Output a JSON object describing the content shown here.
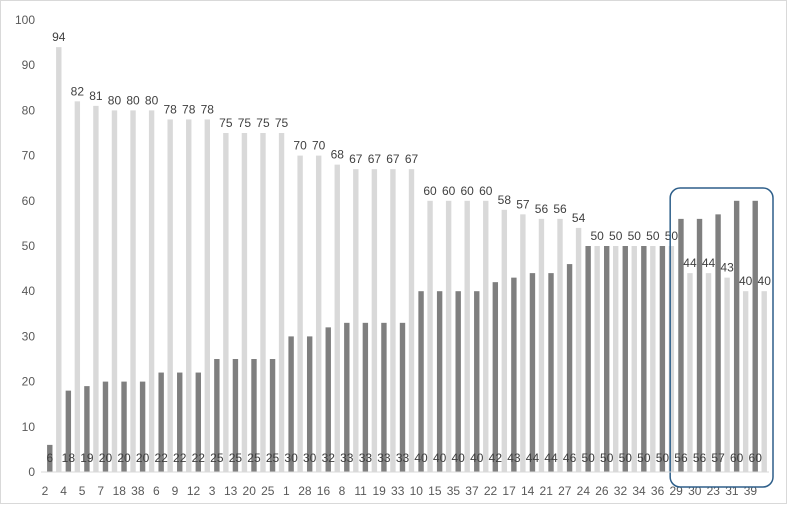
{
  "chart_data": {
    "type": "bar",
    "title": "",
    "xlabel": "",
    "ylabel": "",
    "ylim": [
      0,
      100
    ],
    "yticks": [
      0,
      10,
      20,
      30,
      40,
      50,
      60,
      70,
      80,
      90,
      100
    ],
    "grid": false,
    "legend": "none",
    "categories": [
      "2",
      "4",
      "5",
      "7",
      "18",
      "38",
      "6",
      "9",
      "12",
      "3",
      "13",
      "20",
      "25",
      "1",
      "28",
      "16",
      "8",
      "11",
      "19",
      "33",
      "10",
      "15",
      "35",
      "37",
      "22",
      "17",
      "14",
      "21",
      "27",
      "24",
      "26",
      "32",
      "34",
      "36",
      "29",
      "30",
      "23",
      "31",
      "39"
    ],
    "x_tick_labels": [
      "2",
      "4",
      "5",
      "7",
      "18",
      "38",
      "6",
      "9",
      "12",
      "3",
      "13",
      "20",
      "25",
      "1",
      "28",
      "16",
      "8",
      "11",
      "19",
      "33",
      "10",
      "15",
      "35",
      "37",
      "22",
      "17",
      "14",
      "21",
      "27",
      "24",
      "26",
      "32",
      "34",
      "36",
      "29",
      "30",
      "23",
      "31",
      "39"
    ],
    "series": [
      {
        "values": [
          6,
          18,
          19,
          20,
          20,
          20,
          22,
          22,
          22,
          25,
          25,
          25,
          25,
          30,
          30,
          32,
          33,
          33,
          33,
          33,
          40,
          40,
          40,
          40,
          42,
          43,
          44,
          44,
          46,
          50,
          50,
          50,
          50,
          50,
          56,
          56,
          57,
          60,
          60
        ]
      },
      {
        "values": [
          94,
          82,
          81,
          80,
          80,
          80,
          78,
          78,
          78,
          75,
          75,
          75,
          75,
          70,
          70,
          68,
          67,
          67,
          67,
          67,
          60,
          60,
          60,
          60,
          58,
          57,
          56,
          56,
          54,
          50,
          50,
          50,
          50,
          50,
          44,
          44,
          43,
          40,
          40
        ]
      }
    ],
    "colors": {
      "dark_series": "#7f7f7f",
      "light_series": "#d9d9d9",
      "highlight_box": "#2e5f8a"
    },
    "annotations": [
      {
        "type": "highlight-box",
        "from_category": "29",
        "to_category": "39"
      }
    ]
  }
}
